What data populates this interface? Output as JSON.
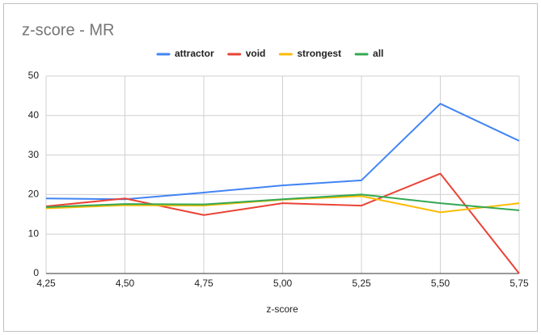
{
  "chart_data": {
    "type": "line",
    "title": "z-score - MR",
    "x_label": "z-score",
    "x": [
      4.25,
      4.5,
      4.75,
      5.0,
      5.25,
      5.5,
      5.75
    ],
    "series": [
      {
        "name": "attractor",
        "color": "#4285f4",
        "values": [
          19,
          18.8,
          20.5,
          22.3,
          23.6,
          43,
          33.6
        ]
      },
      {
        "name": "void",
        "color": "#ea4335",
        "values": [
          17,
          19,
          14.8,
          17.8,
          17.2,
          25.3,
          0
        ]
      },
      {
        "name": "strongest",
        "color": "#fbbc04",
        "values": [
          16.5,
          17.3,
          17.2,
          18.7,
          19.6,
          15.5,
          17.8
        ]
      },
      {
        "name": "all",
        "color": "#34a853",
        "values": [
          16.8,
          17.6,
          17.5,
          18.8,
          20,
          17.8,
          16
        ]
      }
    ],
    "xlim": [
      4.25,
      5.75
    ],
    "xticks": [
      {
        "value": 4.25,
        "label": "4,25"
      },
      {
        "value": 4.5,
        "label": "4,50"
      },
      {
        "value": 4.75,
        "label": "4,75"
      },
      {
        "value": 5.0,
        "label": "5,00"
      },
      {
        "value": 5.25,
        "label": "5,25"
      },
      {
        "value": 5.5,
        "label": "5,50"
      },
      {
        "value": 5.75,
        "label": "5,75"
      }
    ],
    "ylim": [
      0,
      50
    ],
    "yticks": [
      0,
      10,
      20,
      30,
      40,
      50
    ],
    "grid": true,
    "legend": "top"
  }
}
